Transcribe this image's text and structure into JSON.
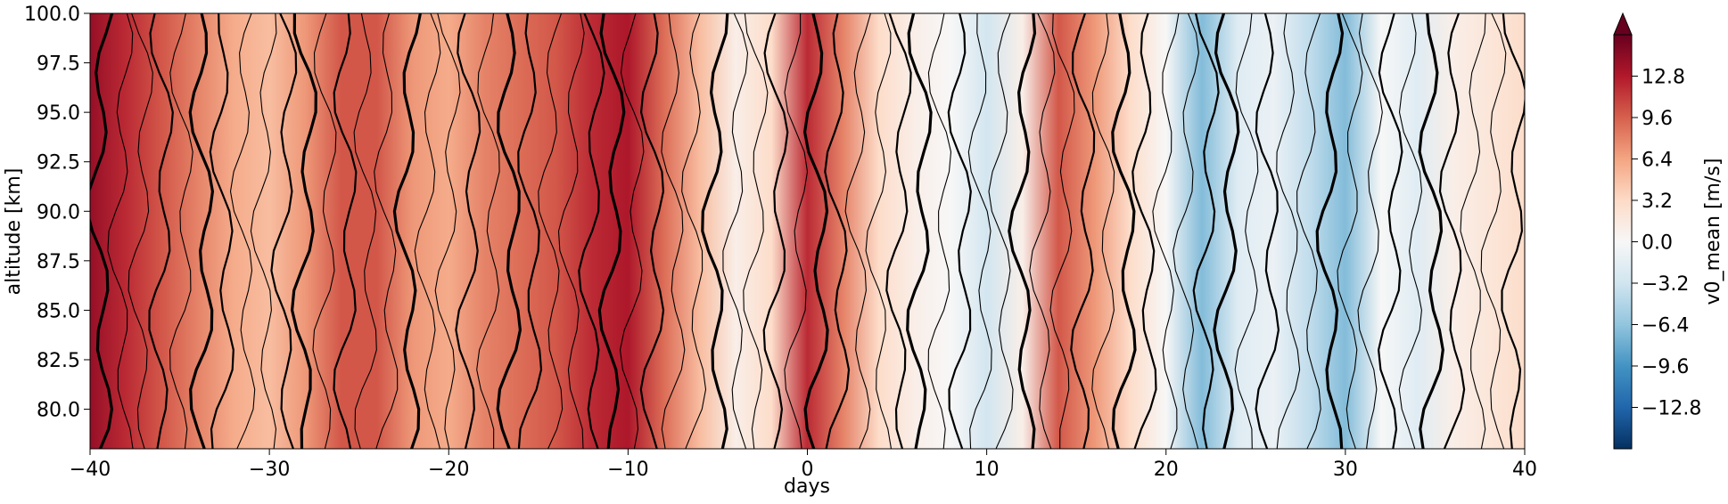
{
  "chart_data": {
    "type": "heatmap",
    "subtype": "filled-contour-with-line-contours",
    "xlabel": "days",
    "ylabel": "altitude [km]",
    "xlim": [
      -40,
      40
    ],
    "ylim": [
      78,
      100
    ],
    "x_ticks": [
      -40,
      -30,
      -20,
      -10,
      0,
      10,
      20,
      30,
      40
    ],
    "x_tick_labels": [
      "−40",
      "−30",
      "−20",
      "−10",
      "0",
      "10",
      "20",
      "30",
      "40"
    ],
    "y_ticks": [
      80.0,
      82.5,
      85.0,
      87.5,
      90.0,
      92.5,
      95.0,
      97.5,
      100.0
    ],
    "y_tick_labels": [
      "80.0",
      "82.5",
      "85.0",
      "87.5",
      "90.0",
      "92.5",
      "95.0",
      "97.5",
      "100.0"
    ],
    "colorbar": {
      "label": "v0_mean [m/s]",
      "colormap": "RdBu_r",
      "range": [
        -16,
        16
      ],
      "extend": "max",
      "ticks": [
        -12.8,
        -9.6,
        -6.4,
        -3.2,
        0.0,
        3.2,
        6.4,
        9.6,
        12.8
      ],
      "tick_labels": [
        "−12.8",
        "−9.6",
        "−6.4",
        "−3.2",
        "0.0",
        "3.2",
        "6.4",
        "9.6",
        "12.8"
      ]
    },
    "field_profile": {
      "x": [
        -40,
        -38,
        -36,
        -34,
        -32,
        -30,
        -28,
        -26,
        -24,
        -22,
        -20,
        -18,
        -16,
        -14,
        -12,
        -10,
        -8,
        -6,
        -4,
        -2,
        0,
        2,
        4,
        6,
        8,
        10,
        12,
        14,
        16,
        18,
        20,
        22,
        24,
        26,
        28,
        30,
        32,
        34,
        36,
        38,
        40
      ],
      "v0_mean": [
        14,
        12,
        10,
        8,
        6,
        5,
        7,
        10,
        10,
        7,
        6,
        8,
        9,
        10,
        12,
        13,
        9,
        5,
        1,
        3,
        12,
        8,
        3,
        1,
        0,
        -3,
        1,
        10,
        7,
        3,
        0,
        -7,
        -2,
        -1,
        -4,
        -7,
        0,
        -2,
        1,
        2,
        3
      ]
    },
    "contour_lines_color": "#000000"
  }
}
